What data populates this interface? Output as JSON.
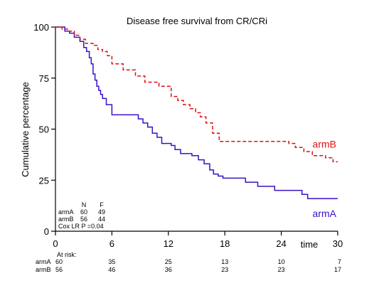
{
  "chart_data": {
    "type": "line",
    "title": "Disease free survival from CR/CRi",
    "xlabel": "time",
    "ylabel": "Cumulative percentage",
    "xlim": [
      0,
      30
    ],
    "ylim": [
      0,
      100
    ],
    "x_ticks": [
      0,
      6,
      12,
      18,
      24,
      30
    ],
    "y_ticks": [
      0,
      25,
      50,
      75,
      100
    ],
    "grid": false,
    "line_style": "step",
    "series": [
      {
        "name": "armA",
        "color": "#3a10c8",
        "dash": "solid",
        "points": [
          [
            0,
            100
          ],
          [
            1,
            98
          ],
          [
            1.5,
            97
          ],
          [
            2,
            95
          ],
          [
            2.6,
            93
          ],
          [
            3,
            90
          ],
          [
            3.3,
            88
          ],
          [
            3.6,
            85
          ],
          [
            3.8,
            82
          ],
          [
            4,
            77
          ],
          [
            4.2,
            74
          ],
          [
            4.4,
            71
          ],
          [
            4.6,
            69
          ],
          [
            4.8,
            67
          ],
          [
            5,
            65
          ],
          [
            5.4,
            62
          ],
          [
            6,
            57
          ],
          [
            8.8,
            55
          ],
          [
            9.3,
            53
          ],
          [
            9.8,
            51
          ],
          [
            10.3,
            48
          ],
          [
            10.8,
            46
          ],
          [
            11.3,
            43
          ],
          [
            12.3,
            42
          ],
          [
            12.7,
            40
          ],
          [
            13.3,
            38
          ],
          [
            14.5,
            37
          ],
          [
            15.2,
            35
          ],
          [
            15.8,
            33
          ],
          [
            16.4,
            30
          ],
          [
            16.8,
            28
          ],
          [
            17.3,
            27
          ],
          [
            17.8,
            26
          ],
          [
            20.2,
            24
          ],
          [
            21.5,
            22
          ],
          [
            23.3,
            20
          ],
          [
            26.2,
            18
          ],
          [
            26.8,
            16
          ],
          [
            30,
            16
          ]
        ]
      },
      {
        "name": "armB",
        "color": "#dd1111",
        "dash": "dashed",
        "points": [
          [
            0,
            100
          ],
          [
            0.7,
            99
          ],
          [
            1.3,
            98
          ],
          [
            2,
            96
          ],
          [
            2.6,
            94
          ],
          [
            3.2,
            92
          ],
          [
            4,
            91
          ],
          [
            4.5,
            89
          ],
          [
            5,
            88
          ],
          [
            5.5,
            86
          ],
          [
            6,
            82
          ],
          [
            7.2,
            79
          ],
          [
            8.5,
            76
          ],
          [
            9.5,
            73
          ],
          [
            11,
            71
          ],
          [
            12.3,
            66
          ],
          [
            13,
            64
          ],
          [
            13.6,
            62
          ],
          [
            14.3,
            60
          ],
          [
            14.9,
            58
          ],
          [
            15.4,
            56
          ],
          [
            16,
            53
          ],
          [
            16.7,
            48
          ],
          [
            17.4,
            44
          ],
          [
            19.5,
            44
          ],
          [
            21.5,
            44
          ],
          [
            24,
            44
          ],
          [
            24.8,
            43
          ],
          [
            25.5,
            41
          ],
          [
            26.4,
            39
          ],
          [
            27.3,
            37
          ],
          [
            28,
            37
          ],
          [
            28.7,
            36
          ],
          [
            29.5,
            34
          ],
          [
            30,
            34
          ]
        ]
      }
    ],
    "legend_table": {
      "header": [
        "N",
        "F"
      ],
      "rows": [
        {
          "arm": "armA",
          "n": "60",
          "f": "49"
        },
        {
          "arm": "armB",
          "n": "56",
          "f": "44"
        }
      ],
      "test": "Cox LR P =0.04"
    },
    "at_risk": {
      "title": "At risk:",
      "times": [
        0,
        6,
        12,
        18,
        24,
        30
      ],
      "rows": [
        {
          "arm": "armA",
          "values": [
            "60",
            "35",
            "25",
            "13",
            "10",
            "7"
          ]
        },
        {
          "arm": "armB",
          "values": [
            "56",
            "46",
            "36",
            "23",
            "23",
            "17"
          ]
        }
      ]
    }
  }
}
